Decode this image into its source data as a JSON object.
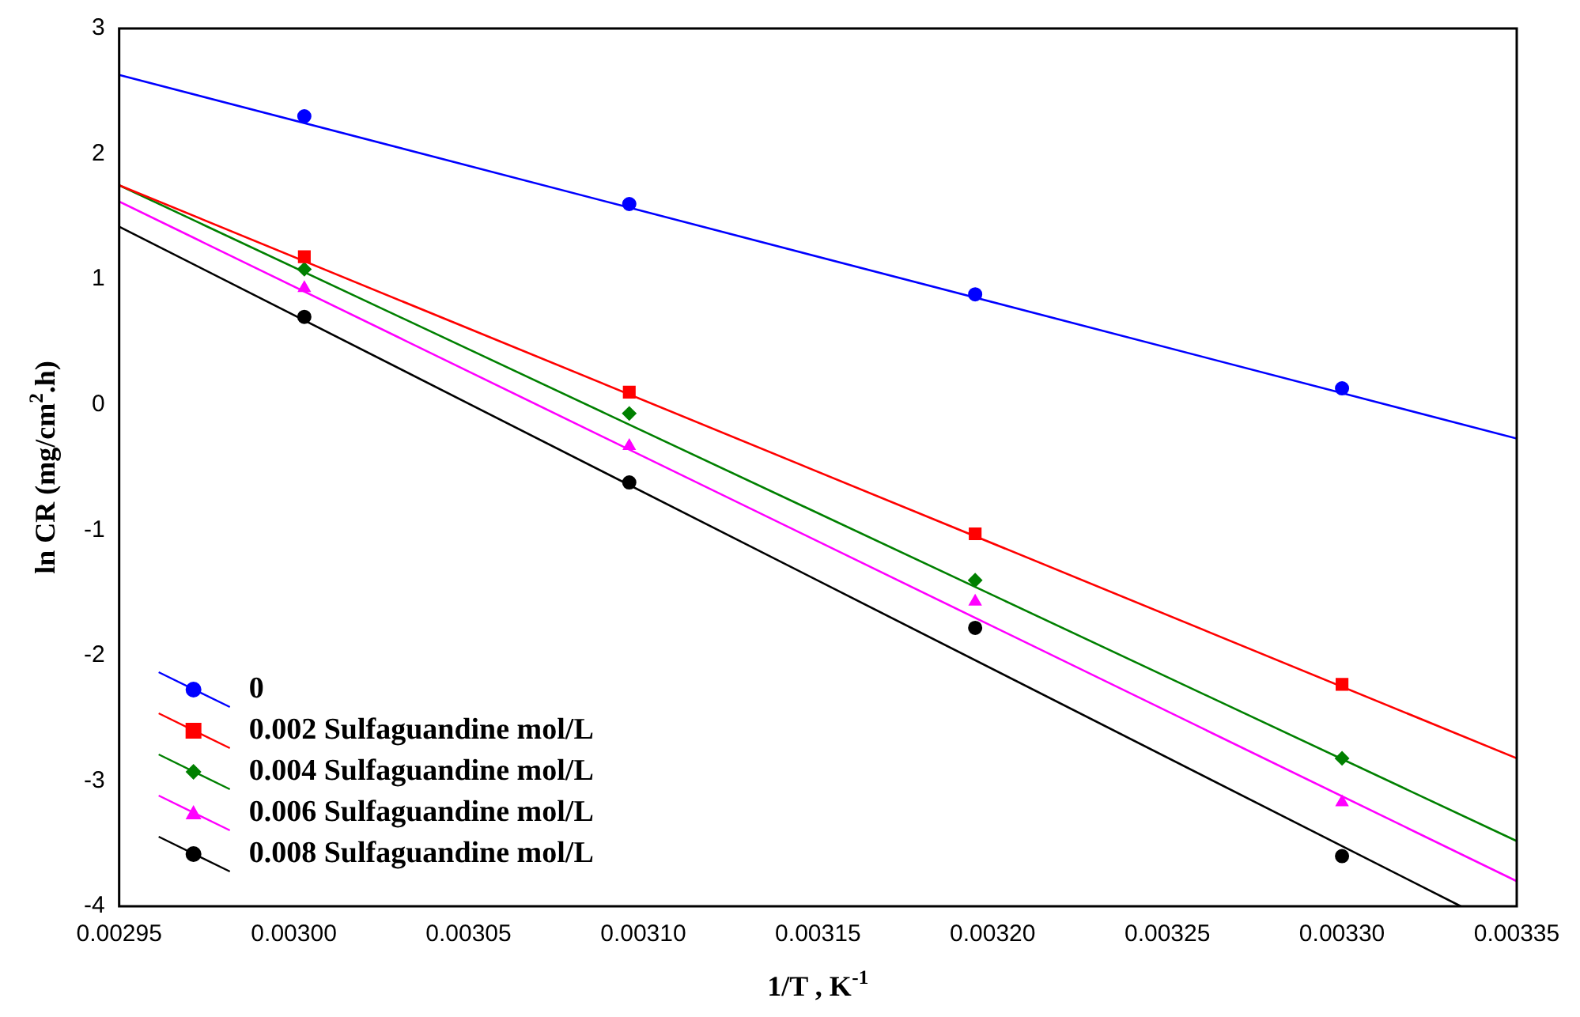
{
  "chart_data": {
    "type": "scatter",
    "xlabel": "1/T , K$^{-1}$",
    "ylabel": "ln CR (mg/cm$^{2}$.h)",
    "x": [
      0.003003,
      0.003096,
      0.003195,
      0.0033
    ],
    "xlim": [
      0.00295,
      0.00335
    ],
    "ylim": [
      -4,
      3
    ],
    "xticks": [
      {
        "value": 0.00295,
        "label": "0.00295"
      },
      {
        "value": 0.003,
        "label": "0.00300"
      },
      {
        "value": 0.00305,
        "label": "0.00305"
      },
      {
        "value": 0.0031,
        "label": "0.00310"
      },
      {
        "value": 0.00315,
        "label": "0.00315"
      },
      {
        "value": 0.0032,
        "label": "0.00320"
      },
      {
        "value": 0.00325,
        "label": "0.00325"
      },
      {
        "value": 0.0033,
        "label": "0.00330"
      },
      {
        "value": 0.00335,
        "label": "0.00335"
      }
    ],
    "yticks": [
      -4,
      -3,
      -2,
      -1,
      0,
      1,
      2,
      3
    ],
    "grid": false,
    "legend": "bottom left",
    "series": [
      {
        "name": "0",
        "color": "#0000ff",
        "marker": "circle",
        "values": [
          2.3,
          1.6,
          0.88,
          0.13
        ]
      },
      {
        "name": "0.002 Sulfaguandine mol/L",
        "color": "#ff0000",
        "marker": "square",
        "values": [
          1.18,
          0.1,
          -1.03,
          -2.23
        ]
      },
      {
        "name": "0.004 Sulfaguandine mol/L",
        "color": "#008000",
        "marker": "diamond",
        "values": [
          1.08,
          -0.07,
          -1.4,
          -2.82
        ]
      },
      {
        "name": "0.006 Sulfaguandine mol/L",
        "color": "#ff00ff",
        "marker": "triangle",
        "values": [
          0.93,
          -0.33,
          -1.57,
          -3.17
        ]
      },
      {
        "name": "0.008 Sulfaguandine mol/L",
        "color": "#000000",
        "marker": "circle",
        "values": [
          0.7,
          -0.62,
          -1.78,
          -3.6
        ]
      },
      {
        "type": "line",
        "color": "#0000ff",
        "marker": "none",
        "x": [
          0.00295,
          0.00335
        ],
        "values": [
          2.63,
          -0.27
        ]
      },
      {
        "type": "line",
        "color": "#ff0000",
        "marker": "none",
        "x": [
          0.00295,
          0.00335
        ],
        "values": [
          1.75,
          -2.82
        ]
      },
      {
        "type": "line",
        "color": "#008000",
        "marker": "none",
        "x": [
          0.00295,
          0.00335
        ],
        "values": [
          1.75,
          -3.48
        ]
      },
      {
        "type": "line",
        "color": "#ff00ff",
        "marker": "none",
        "x": [
          0.00295,
          0.00335
        ],
        "values": [
          1.62,
          -3.8
        ]
      },
      {
        "type": "line",
        "color": "#000000",
        "marker": "none",
        "x": [
          0.00295,
          0.003334
        ],
        "values": [
          1.42,
          -4
        ]
      }
    ]
  }
}
